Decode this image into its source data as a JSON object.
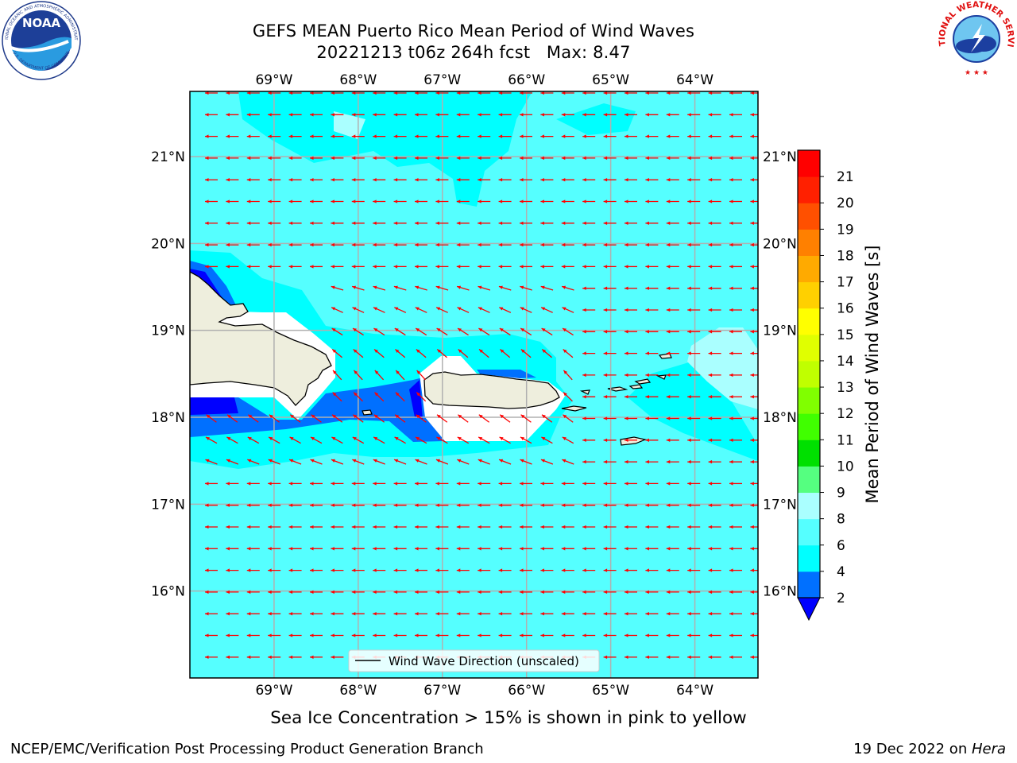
{
  "header": {
    "title_line1": "GEFS MEAN Puerto Rico Mean Period of Wind Waves",
    "title_line2": "20221213 t06z 264h fcst   Max: 8.47"
  },
  "logos": {
    "noaa_text": "NOAA",
    "noaa_ring_text": "NATIONAL OCEANIC AND ATMOSPHERIC ADMINISTRATION",
    "noaa_ring_bottom": "U.S. DEPARTMENT OF COMMERCE",
    "nws_ring_text": "NATIONAL WEATHER SERVICE"
  },
  "legend": {
    "label": "Wind Wave Direction (unscaled)"
  },
  "note": "Sea Ice Concentration > 15% is shown in pink to yellow",
  "footer": {
    "left": "NCEP/EMC/Verification Post Processing Product Generation Branch",
    "right_prefix": "19 Dec 2022 on ",
    "right_host": "Hera"
  },
  "chart_data": {
    "type": "heatmap",
    "title": "GEFS MEAN Puerto Rico Mean Period of Wind Waves",
    "subtitle": "20221213 t06z 264h fcst   Max: 8.47",
    "max_value": 8.47,
    "lon_ticks": [
      "69°W",
      "68°W",
      "67°W",
      "66°W",
      "65°W",
      "64°W"
    ],
    "lat_ticks": [
      "21°N",
      "20°N",
      "19°N",
      "18°N",
      "17°N",
      "16°N"
    ],
    "lon_range": [
      -70.0,
      -63.25
    ],
    "lat_range": [
      15.0,
      21.75
    ],
    "grid": true,
    "colorbar": {
      "label": "Mean Period of Wind Waves [s]",
      "ticks": [
        "2",
        "4",
        "6",
        "8",
        "9",
        "10",
        "11",
        "12",
        "13",
        "14",
        "15",
        "16",
        "17",
        "18",
        "19",
        "20",
        "21"
      ],
      "levels": [
        2,
        4,
        6,
        8,
        9,
        10,
        11,
        12,
        13,
        14,
        15,
        16,
        17,
        18,
        19,
        20,
        21
      ],
      "colors": [
        "#0070ff",
        "#00ffff",
        "#55ffff",
        "#aaffff",
        "#55ff80",
        "#00e000",
        "#40ff00",
        "#80ff00",
        "#c0ff00",
        "#e0ff00",
        "#ffff00",
        "#ffd000",
        "#ffaa00",
        "#ff8000",
        "#ff5000",
        "#ff2000",
        "#ff0000"
      ],
      "under_color": "#0000ff",
      "extend": "min"
    },
    "vectors": {
      "name": "Wind Wave Direction (unscaled)",
      "color": "#ff0000",
      "direction": "toward west, slightly south-west near islands"
    },
    "legend_position": "bottom-center",
    "field_color": "#55ffff",
    "land_color": "#eeeedd"
  }
}
